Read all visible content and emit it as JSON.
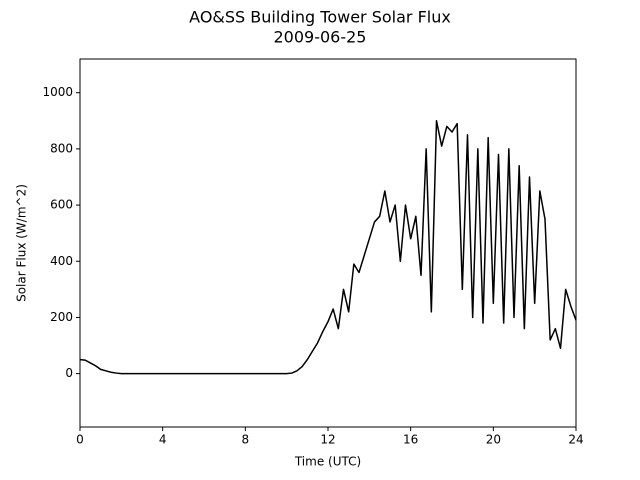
{
  "chart_data": {
    "type": "line",
    "title": "AO&SS Building Tower Solar Flux",
    "subtitle": "2009-06-25",
    "x_label": "Time (UTC)",
    "y_label": "Solar Flux (W/m^2)",
    "x": [
      0,
      0.25,
      0.5,
      0.75,
      1,
      1.25,
      1.5,
      1.75,
      2,
      2.25,
      2.5,
      2.75,
      3,
      3.25,
      3.5,
      3.75,
      4,
      4.25,
      4.5,
      4.75,
      5,
      5.25,
      5.5,
      5.75,
      6,
      6.25,
      6.5,
      6.75,
      7,
      7.25,
      7.5,
      7.75,
      8,
      8.25,
      8.5,
      8.75,
      9,
      9.25,
      9.5,
      9.75,
      10,
      10.25,
      10.5,
      10.75,
      11,
      11.25,
      11.5,
      11.75,
      12,
      12.25,
      12.5,
      12.75,
      13,
      13.25,
      13.5,
      13.75,
      14,
      14.25,
      14.5,
      14.75,
      15,
      15.25,
      15.5,
      15.75,
      16,
      16.25,
      16.5,
      16.75,
      17,
      17.25,
      17.5,
      17.75,
      18,
      18.25,
      18.5,
      18.75,
      19,
      19.25,
      19.5,
      19.75,
      20,
      20.25,
      20.5,
      20.75,
      21,
      21.25,
      21.5,
      21.75,
      22,
      22.25,
      22.5,
      22.75,
      23,
      23.25,
      23.5,
      23.75,
      24
    ],
    "series": [
      {
        "name": "Solar Flux",
        "color": "#000000",
        "values": [
          50,
          48,
          38,
          28,
          15,
          10,
          5,
          2,
          0,
          0,
          0,
          0,
          0,
          0,
          0,
          0,
          0,
          0,
          0,
          0,
          0,
          0,
          0,
          0,
          0,
          0,
          0,
          0,
          0,
          0,
          0,
          0,
          0,
          0,
          0,
          0,
          0,
          0,
          0,
          0,
          0,
          2,
          10,
          25,
          50,
          80,
          110,
          150,
          185,
          230,
          160,
          300,
          220,
          390,
          360,
          420,
          480,
          540,
          560,
          650,
          540,
          600,
          400,
          600,
          480,
          560,
          350,
          800,
          220,
          900,
          810,
          880,
          860,
          890,
          300,
          850,
          200,
          800,
          180,
          840,
          250,
          780,
          180,
          800,
          200,
          740,
          160,
          700,
          250,
          650,
          550,
          120,
          160,
          90,
          300,
          240,
          190
        ]
      }
    ],
    "xlim": [
      0,
      24
    ],
    "xticks": [
      0,
      4,
      8,
      12,
      16,
      20,
      24
    ],
    "ylim": [
      -190,
      1120
    ],
    "yticks": [
      0,
      200,
      400,
      600,
      800,
      1000
    ],
    "grid": false
  }
}
